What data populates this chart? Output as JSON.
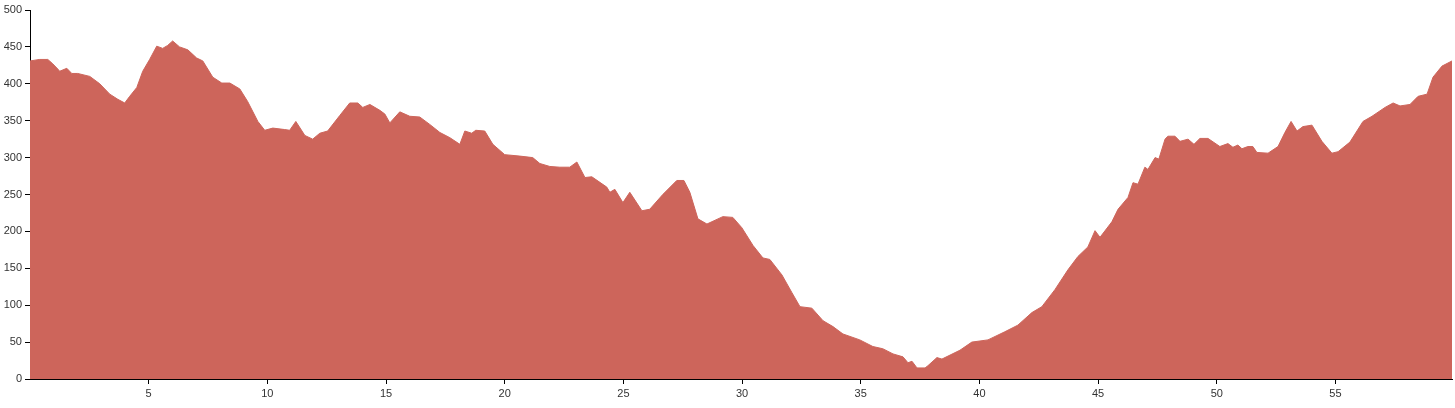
{
  "chart_data": {
    "type": "area",
    "color": "#cd655b",
    "xlim": [
      0,
      59.91
    ],
    "ylim": [
      0,
      500
    ],
    "xticks": [
      5,
      10,
      15,
      20,
      25,
      30,
      35,
      40,
      45,
      50,
      55
    ],
    "yticks": [
      0,
      50,
      100,
      150,
      200,
      250,
      300,
      350,
      400,
      450,
      500
    ],
    "grid": false,
    "legend": false,
    "marker": "none",
    "x": [
      0,
      0.41,
      0.75,
      0.96,
      1.17,
      1.25,
      1.55,
      1.76,
      2.01,
      2.52,
      2.94,
      3.36,
      3.7,
      3.99,
      4.2,
      4.5,
      4.75,
      5.04,
      5.34,
      5.59,
      5.8,
      6.01,
      6.3,
      6.65,
      7.02,
      7.28,
      7.7,
      8.08,
      8.42,
      8.84,
      9.17,
      9.6,
      9.89,
      10.23,
      10.73,
      10.94,
      11.2,
      11.58,
      11.91,
      12.21,
      12.54,
      13.05,
      13.47,
      13.81,
      14.02,
      14.32,
      14.74,
      14.95,
      15.16,
      15.58,
      16,
      16.42,
      16.84,
      17.27,
      17.69,
      18.11,
      18.32,
      18.61,
      18.78,
      19.16,
      19.5,
      20,
      20.64,
      21.18,
      21.48,
      21.9,
      22.32,
      22.74,
      23.04,
      23.38,
      23.67,
      24.3,
      24.43,
      24.64,
      24.98,
      25.27,
      25.78,
      26.11,
      26.66,
      27.25,
      27.55,
      27.8,
      28.14,
      28.52,
      29.19,
      29.61,
      29.99,
      30.46,
      30.88,
      31.17,
      31.68,
      32.1,
      32.44,
      32.94,
      33.41,
      33.83,
      34.25,
      34.96,
      35.51,
      35.93,
      36.36,
      36.78,
      36.99,
      37.16,
      37.37,
      37.71,
      37.83,
      38.21,
      38.42,
      39.18,
      39.68,
      40.36,
      41.07,
      41.62,
      42.21,
      42.63,
      43.18,
      43.73,
      44.15,
      44.57,
      44.87,
      45.08,
      45.58,
      45.84,
      46.26,
      46.47,
      46.68,
      46.97,
      47.1,
      47.4,
      47.56,
      47.82,
      47.94,
      48.24,
      48.45,
      48.79,
      49.04,
      49.29,
      49.63,
      50.13,
      50.47,
      50.68,
      50.89,
      51.06,
      51.31,
      51.52,
      51.69,
      52.16,
      52.58,
      52.87,
      53.13,
      53.38,
      53.63,
      54.01,
      54.43,
      54.85,
      55.11,
      55.61,
      56.16,
      56.54,
      57.09,
      57.43,
      57.72,
      58.14,
      58.48,
      58.86,
      59.11,
      59.49,
      59.91
    ],
    "values": [
      431,
      433,
      433,
      427,
      420,
      417,
      421,
      414,
      414,
      410,
      400,
      386,
      379,
      374,
      383,
      395,
      417,
      433,
      451,
      448,
      452,
      458,
      450,
      446,
      435,
      431,
      409,
      401,
      401,
      393,
      376,
      349,
      337,
      340,
      338,
      337,
      349,
      330,
      325,
      333,
      336,
      357,
      374,
      374,
      368,
      372,
      364,
      359,
      347,
      362,
      356,
      355,
      345,
      334,
      327,
      318,
      336,
      333,
      337,
      336,
      318,
      304,
      302,
      300,
      292,
      288,
      287,
      287,
      294,
      273,
      274,
      260,
      253,
      257,
      239,
      253,
      228,
      230,
      250,
      269,
      269,
      253,
      217,
      210,
      220,
      219,
      205,
      181,
      164,
      162,
      141,
      117,
      98,
      96,
      79,
      71,
      61,
      53,
      44,
      41,
      34,
      30,
      22,
      24,
      15,
      15,
      18,
      29,
      27,
      39,
      50,
      53,
      64,
      73,
      90,
      98,
      121,
      148,
      166,
      179,
      201,
      192,
      213,
      230,
      246,
      266,
      264,
      287,
      284,
      300,
      298,
      325,
      329,
      329,
      322,
      325,
      318,
      326,
      326,
      315,
      319,
      314,
      317,
      312,
      315,
      315,
      307,
      306,
      315,
      334,
      349,
      336,
      342,
      344,
      322,
      306,
      308,
      321,
      349,
      356,
      368,
      374,
      370,
      372,
      383,
      386,
      409,
      424,
      431
    ]
  }
}
